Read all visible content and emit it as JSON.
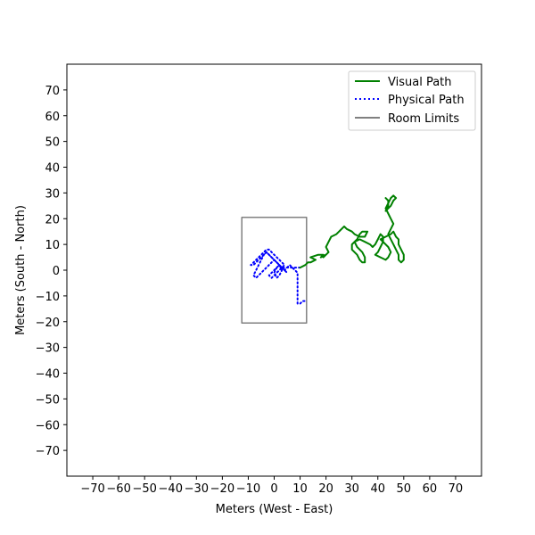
{
  "chart_data": {
    "type": "line",
    "title": "",
    "xlabel": "Meters (West - East)",
    "ylabel": "Meters (South - North)",
    "xlim": [
      -80,
      80
    ],
    "ylim": [
      -80,
      80
    ],
    "xticks": [
      -70,
      -60,
      -50,
      -40,
      -30,
      -20,
      -10,
      0,
      10,
      20,
      30,
      40,
      50,
      60,
      70
    ],
    "yticks": [
      -70,
      -60,
      -50,
      -40,
      -30,
      -20,
      -10,
      0,
      10,
      20,
      30,
      40,
      50,
      60,
      70
    ],
    "tick_labels_x": [
      "−70",
      "−60",
      "−50",
      "−40",
      "−30",
      "−20",
      "−10",
      "0",
      "10",
      "20",
      "30",
      "40",
      "50",
      "60",
      "70"
    ],
    "tick_labels_y": [
      "−70",
      "−60",
      "−50",
      "−40",
      "−30",
      "−20",
      "−10",
      "0",
      "10",
      "20",
      "30",
      "40",
      "50",
      "60",
      "70"
    ],
    "grid": false,
    "legend_position": "top-right",
    "series": [
      {
        "name": "Visual Path",
        "color": "#008000",
        "style": "solid",
        "x": [
          10,
          12,
          13,
          14,
          16,
          14,
          17,
          19,
          18,
          20,
          19,
          21,
          20,
          21,
          22,
          24,
          25,
          26,
          27,
          28,
          30,
          31,
          33,
          35,
          36,
          34,
          33,
          32,
          30,
          30,
          32,
          33,
          34,
          35,
          35,
          34,
          32,
          31,
          33,
          35,
          37,
          38,
          39,
          40,
          41,
          42,
          42,
          41,
          40,
          39,
          41,
          43,
          44,
          45,
          44,
          42,
          41,
          43,
          45,
          46,
          47,
          48,
          48,
          49,
          50,
          50,
          49,
          48,
          48,
          47,
          46,
          45,
          44,
          45,
          46,
          45,
          44,
          43,
          44,
          45,
          46,
          47,
          46,
          45,
          44,
          43,
          44,
          44,
          43
        ],
        "y": [
          1,
          2,
          3,
          3,
          4,
          5,
          6,
          6,
          5,
          6,
          5,
          7,
          9,
          11,
          13,
          14,
          15,
          16,
          17,
          16,
          15,
          14,
          13,
          13,
          15,
          15,
          14,
          12,
          10,
          8,
          6,
          4,
          3,
          3,
          5,
          7,
          9,
          11,
          12,
          11,
          10,
          9,
          10,
          12,
          14,
          13,
          11,
          9,
          7,
          6,
          5,
          4,
          5,
          7,
          9,
          11,
          12,
          13,
          14,
          15,
          13,
          12,
          10,
          8,
          6,
          4,
          3,
          4,
          6,
          8,
          10,
          12,
          14,
          16,
          18,
          20,
          22,
          24,
          26,
          28,
          29,
          28,
          27,
          25,
          24,
          23,
          25,
          27,
          28
        ]
      },
      {
        "name": "Physical Path",
        "color": "#0000ff",
        "style": "dotted",
        "x": [
          10,
          8,
          6,
          4,
          3,
          2,
          1,
          0,
          -1,
          -2,
          -3,
          -4,
          -5,
          -6,
          -7,
          -8,
          -9,
          -8,
          -7,
          -6,
          -5,
          -4,
          -3,
          -2,
          -1,
          0,
          1,
          2,
          3,
          4,
          3,
          2,
          1,
          0,
          -1,
          -2,
          -1,
          0,
          1,
          2,
          3,
          4,
          5,
          4,
          3,
          2,
          1,
          0,
          -1,
          -2,
          -3,
          -4,
          -5,
          -6,
          -7,
          -8,
          -7,
          -6,
          -5,
          -4,
          -3,
          -2,
          -1,
          0,
          1,
          2,
          3,
          2,
          1,
          0,
          1,
          2,
          3,
          4,
          5,
          6,
          7,
          8,
          9,
          9,
          9,
          9,
          10,
          11,
          12
        ],
        "y": [
          1,
          1,
          1,
          1,
          1,
          2,
          3,
          4,
          5,
          6,
          7,
          6,
          5,
          4,
          3,
          2,
          2,
          3,
          4,
          5,
          6,
          7,
          8,
          8,
          7,
          6,
          5,
          4,
          3,
          2,
          1,
          0,
          -1,
          -2,
          -3,
          -2,
          -1,
          0,
          1,
          2,
          1,
          0,
          -1,
          0,
          1,
          2,
          3,
          4,
          3,
          2,
          1,
          0,
          -1,
          -2,
          -3,
          -2,
          0,
          2,
          4,
          6,
          7,
          6,
          5,
          4,
          3,
          2,
          0,
          -2,
          -3,
          -1,
          1,
          2,
          1,
          0,
          1,
          2,
          1,
          0,
          -1,
          -5,
          -9,
          -13,
          -13,
          -12,
          -12
        ]
      },
      {
        "name": "Room Limits",
        "color": "#808080",
        "style": "solid",
        "x": [
          -12.5,
          12.5,
          12.5,
          -12.5,
          -12.5
        ],
        "y": [
          20.5,
          20.5,
          -20.5,
          -20.5,
          20.5
        ]
      }
    ]
  }
}
